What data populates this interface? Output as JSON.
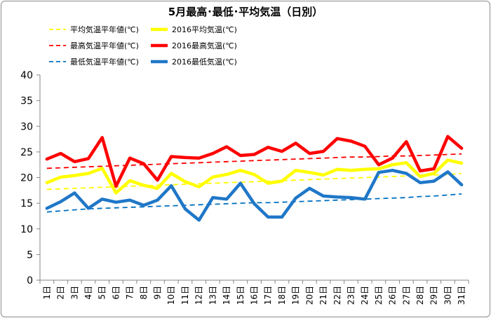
{
  "chart_data": {
    "type": "line",
    "title": "5月最高･最低･平均気温（日別）",
    "categories": [
      "1日",
      "2日",
      "3日",
      "4日",
      "5日",
      "6日",
      "7日",
      "8日",
      "9日",
      "10日",
      "11日",
      "12日",
      "13日",
      "14日",
      "15日",
      "16日",
      "17日",
      "18日",
      "19日",
      "20日",
      "21日",
      "22日",
      "23日",
      "24日",
      "25日",
      "26日",
      "27日",
      "28日",
      "29日",
      "30日",
      "31日"
    ],
    "ylim": [
      0,
      40
    ],
    "yticks": [
      0,
      5,
      10,
      15,
      20,
      25,
      30,
      35,
      40
    ],
    "grid": false,
    "legend": "top",
    "series": [
      {
        "name": "平均気温平年値(℃)",
        "color": "#ffff00",
        "dashed": true,
        "values": [
          17.7,
          17.8,
          17.9,
          18.0,
          18.1,
          18.2,
          18.3,
          18.4,
          18.5,
          18.6,
          18.7,
          18.8,
          18.9,
          19.0,
          19.1,
          19.2,
          19.3,
          19.4,
          19.5,
          19.6,
          19.7,
          19.8,
          19.9,
          20.0,
          20.1,
          20.2,
          20.3,
          20.4,
          20.5,
          20.6,
          20.8
        ]
      },
      {
        "name": "2016平均気温(℃)",
        "color": "#ffff00",
        "dashed": false,
        "values": [
          19.0,
          20.1,
          20.4,
          20.8,
          21.8,
          17.0,
          19.4,
          18.5,
          17.9,
          20.8,
          19.2,
          18.2,
          20.1,
          20.6,
          21.4,
          20.6,
          18.9,
          19.3,
          21.4,
          21.0,
          20.5,
          21.6,
          21.4,
          21.6,
          21.7,
          22.5,
          22.9,
          20.2,
          20.8,
          23.4,
          22.8
        ]
      },
      {
        "name": "最高気温平年値(℃)",
        "color": "#ff0000",
        "dashed": true,
        "values": [
          21.8,
          21.9,
          22.0,
          22.1,
          22.2,
          22.3,
          22.4,
          22.5,
          22.6,
          22.7,
          22.8,
          22.9,
          23.0,
          23.1,
          23.2,
          23.3,
          23.4,
          23.5,
          23.6,
          23.7,
          23.8,
          23.9,
          24.0,
          24.0,
          24.1,
          24.2,
          24.2,
          24.3,
          24.4,
          24.5,
          24.6
        ]
      },
      {
        "name": "2016最高気温(℃)",
        "color": "#ff0000",
        "dashed": false,
        "values": [
          23.6,
          24.7,
          23.1,
          23.7,
          27.8,
          18.3,
          23.8,
          22.7,
          19.5,
          24.1,
          23.9,
          23.8,
          24.7,
          26.0,
          24.3,
          24.5,
          25.9,
          25.1,
          26.7,
          24.7,
          25.1,
          27.6,
          27.1,
          26.1,
          22.5,
          23.8,
          27.0,
          21.3,
          21.7,
          28.0,
          25.7
        ]
      },
      {
        "name": "最低気温平年値(℃)",
        "color": "#0070c0",
        "dashed": true,
        "values": [
          13.3,
          13.5,
          13.7,
          13.9,
          14.0,
          14.1,
          14.2,
          14.3,
          14.4,
          14.5,
          14.6,
          14.7,
          14.8,
          14.9,
          15.0,
          15.1,
          15.1,
          15.2,
          15.3,
          15.4,
          15.5,
          15.6,
          15.7,
          15.8,
          15.9,
          16.0,
          16.1,
          16.3,
          16.4,
          16.6,
          16.8
        ]
      },
      {
        "name": "2016最低気温(℃)",
        "color": "#1f77c8",
        "dashed": false,
        "values": [
          14.0,
          15.3,
          17.0,
          14.0,
          15.8,
          15.2,
          15.6,
          14.6,
          15.6,
          18.4,
          13.9,
          11.7,
          16.1,
          15.8,
          18.9,
          14.9,
          12.3,
          12.3,
          16.0,
          17.9,
          16.4,
          16.2,
          16.1,
          15.8,
          21.0,
          21.4,
          20.8,
          19.0,
          19.3,
          21.1,
          18.6
        ]
      }
    ]
  }
}
